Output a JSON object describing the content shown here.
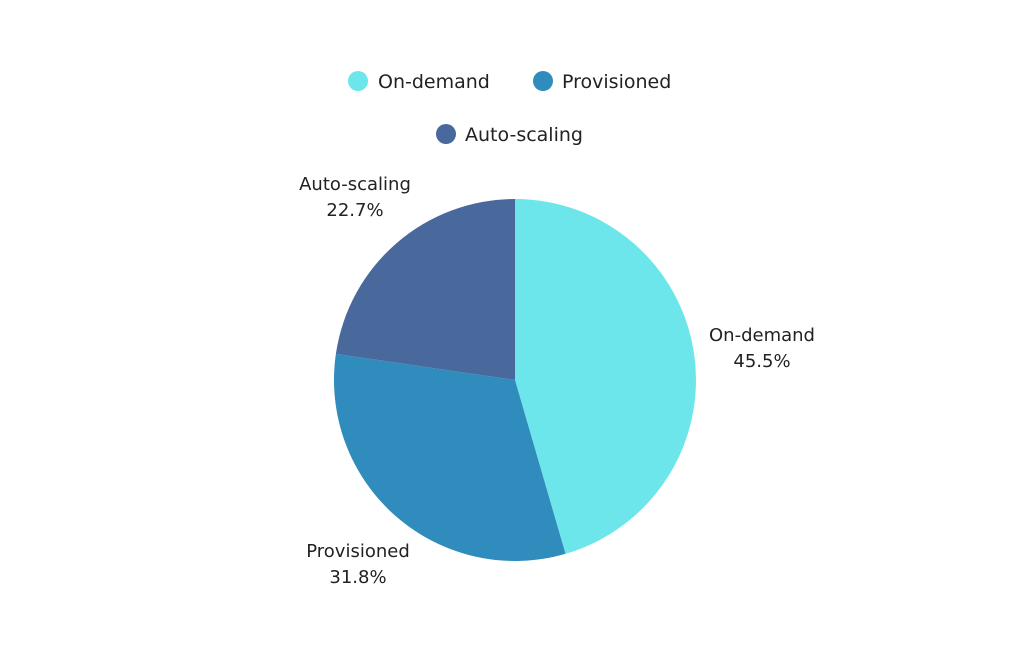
{
  "chart_data": {
    "type": "pie",
    "title": "",
    "legend_position": "top",
    "slices": [
      {
        "name": "On-demand",
        "value": 45.5,
        "label_value": "45.5%",
        "color": "#6ce6ea"
      },
      {
        "name": "Provisioned",
        "value": 31.8,
        "label_value": "31.8%",
        "color": "#2f8cbd"
      },
      {
        "name": "Auto-scaling",
        "value": 22.7,
        "label_value": "22.7%",
        "color": "#49699d"
      }
    ]
  }
}
